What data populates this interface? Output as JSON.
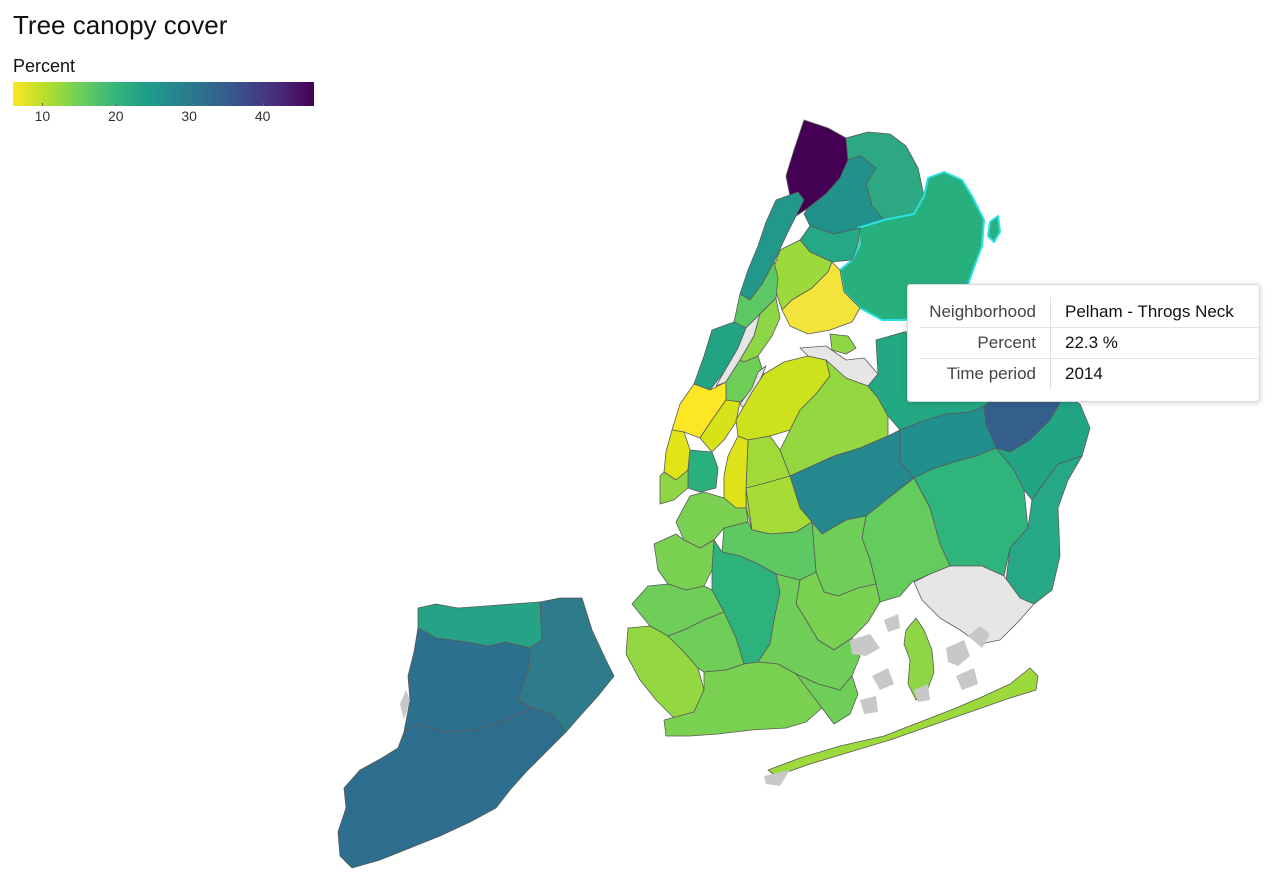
{
  "map": {
    "title": "Tree canopy cover",
    "legend": {
      "title": "Percent",
      "min": 6,
      "max": 47,
      "ticks": [
        10,
        20,
        30,
        40
      ],
      "colormap": [
        "#fde725",
        "#b5de2b",
        "#6ece58",
        "#35b779",
        "#1f9e89",
        "#26828e",
        "#31688e",
        "#3e4989",
        "#482878",
        "#440154"
      ]
    },
    "tooltip": {
      "rows": [
        {
          "key": "Neighborhood",
          "value": "Pelham - Throgs Neck"
        },
        {
          "key": "Percent",
          "value": "22.3 %"
        },
        {
          "key": "Time period",
          "value": "2014"
        }
      ]
    },
    "highlighted_region": "Pelham - Throgs Neck",
    "no_data_color": "#e6e6e6",
    "water_color": "#c8c8c8",
    "outline_color": "#5a5a5a",
    "highlight_color": "#2de0e0"
  }
}
